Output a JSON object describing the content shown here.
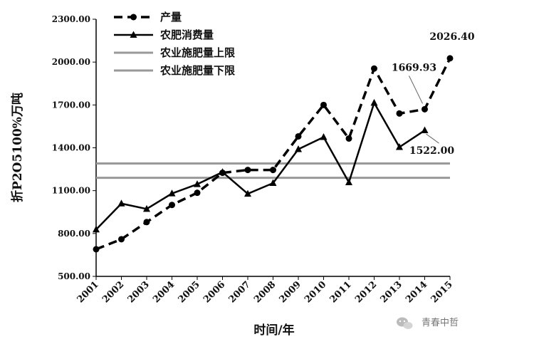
{
  "chart_data": {
    "type": "line",
    "xlabel": "时间/年",
    "ylabel": "折P2O5100%万吨",
    "ylim": [
      500,
      2300
    ],
    "yticks": [
      "500.00",
      "800.00",
      "1100.00",
      "1400.00",
      "1700.00",
      "2000.00",
      "2300.00"
    ],
    "ytick_values": [
      500,
      800,
      1100,
      1400,
      1700,
      2000,
      2300
    ],
    "categories": [
      "2001",
      "2002",
      "2003",
      "2004",
      "2005",
      "2006",
      "2007",
      "2008",
      "2009",
      "2010",
      "2011",
      "2012",
      "2013",
      "2014",
      "2015"
    ],
    "series": [
      {
        "name": "产量",
        "style": "dashed",
        "marker": "circle",
        "color": "#000000",
        "values": [
          690,
          760,
          880,
          1000,
          1085,
          1225,
          1245,
          1245,
          1480,
          1700,
          1465,
          1955,
          1640,
          1670,
          2026.4
        ]
      },
      {
        "name": "农肥消费量",
        "style": "solid",
        "marker": "triangle",
        "color": "#000000",
        "values": [
          828,
          1010,
          972,
          1080,
          1145,
          1230,
          1078,
          1153,
          1390,
          1475,
          1158,
          1715,
          1405,
          1522,
          null
        ]
      },
      {
        "name": "农业施肥量上限",
        "style": "solid",
        "marker": "none",
        "color": "#999999",
        "constant": 1290
      },
      {
        "name": "农业施肥量下限",
        "style": "solid",
        "marker": "none",
        "color": "#999999",
        "constant": 1190
      }
    ],
    "annotations": [
      {
        "text": "2026.40",
        "x": "2015",
        "y": 2026.4
      },
      {
        "text": "1669.93",
        "x": "2014",
        "y": 1669.93
      },
      {
        "text": "1522.00",
        "x": "2014",
        "y": 1522.0
      }
    ],
    "grid": false,
    "legend_position": "top-left"
  },
  "watermark": {
    "icon": "wechat-icon",
    "text": "青春中哲"
  }
}
